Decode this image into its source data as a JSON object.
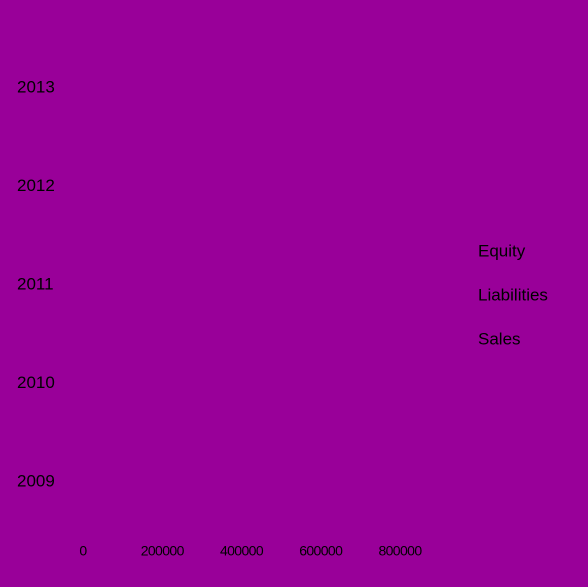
{
  "colors": {
    "background": "#990099",
    "text": "#000000"
  },
  "chart_data": {
    "type": "bar",
    "orientation": "horizontal",
    "categories": [
      "2009",
      "2010",
      "2011",
      "2012",
      "2013"
    ],
    "series": [
      {
        "name": "Equity",
        "values": [
          0,
          0,
          0,
          0,
          0
        ]
      },
      {
        "name": "Liabilities",
        "values": [
          0,
          0,
          0,
          0,
          0
        ]
      },
      {
        "name": "Sales",
        "values": [
          0,
          0,
          0,
          0,
          0
        ]
      }
    ],
    "x_ticks": [
      "0",
      "200000",
      "400000",
      "600000",
      "800000"
    ],
    "xlim": [
      0,
      800000
    ],
    "grid": false,
    "legend": "right"
  }
}
